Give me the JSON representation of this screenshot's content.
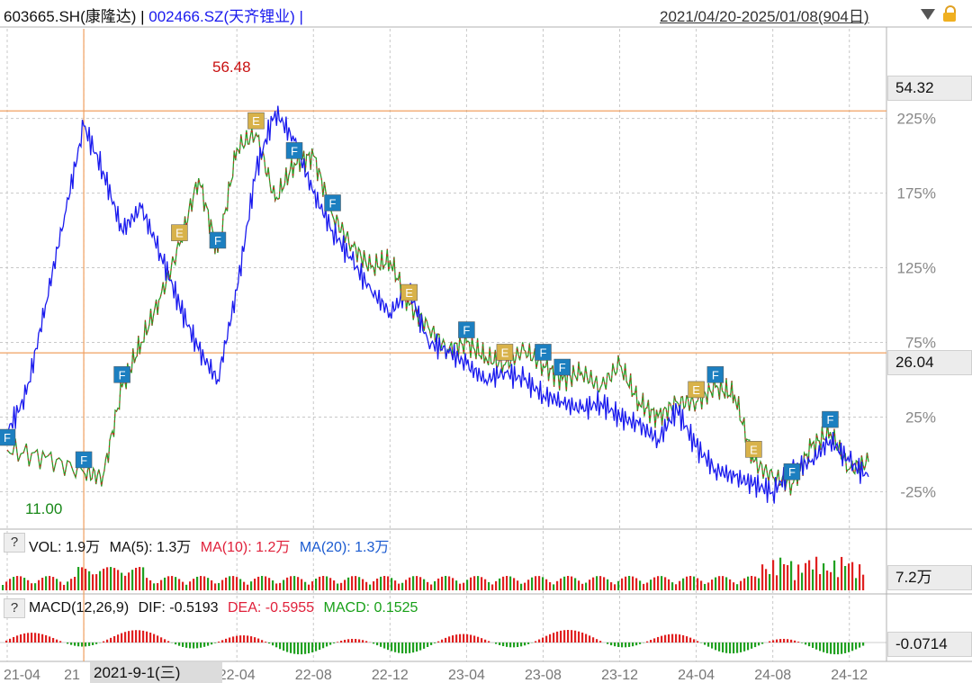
{
  "header": {
    "stock1": "603665.SH(康隆达)",
    "sep1": " | ",
    "stock2": "002466.SZ(天齐锂业)",
    "sep2": " |",
    "range": "2021/04/20-2025/01/08(904日)",
    "colors": {
      "stock1": "#111111",
      "stock2": "#1a1aee",
      "range": "#333333"
    }
  },
  "price_labels": {
    "high": "56.48",
    "low": "11.00",
    "cursor_price": "54.32",
    "ref_price": "26.04",
    "cursor_date": "2021-9-1(三)"
  },
  "volume_panel": {
    "q": "?",
    "vol": "VOL: 1.9万",
    "ma5": "MA(5): 1.3万",
    "ma10": "MA(10): 1.2万",
    "ma20": "MA(20): 1.3万",
    "tag": "7.2万"
  },
  "macd_panel": {
    "q": "?",
    "name": "MACD(12,26,9)",
    "dif": "DIF: -0.5193",
    "dea": "DEA: -0.5955",
    "macd": "MACD: 0.1525",
    "tag": "-0.0714"
  },
  "chart_data": {
    "type": "line",
    "y_ticks": [
      "225%",
      "175%",
      "125%",
      "75%",
      "25%",
      "-25%"
    ],
    "x_ticks": [
      "21-04",
      "21",
      "22-04",
      "22-08",
      "22-12",
      "23-04",
      "23-08",
      "23-12",
      "24-04",
      "24-08",
      "24-12"
    ],
    "series": [
      {
        "name": "603665.SH(康隆达)",
        "color": "#2a9d2a",
        "x": [
          "21-04",
          "21-06",
          "21-08",
          "21-09",
          "21-10",
          "21-11",
          "21-12",
          "22-01",
          "22-02",
          "22-03",
          "22-04",
          "22-05",
          "22-06",
          "22-07",
          "22-08",
          "22-09",
          "22-10",
          "22-11",
          "22-12",
          "23-01",
          "23-02",
          "23-03",
          "23-04",
          "23-05",
          "23-06",
          "23-07",
          "23-08",
          "23-09",
          "23-10",
          "23-11",
          "23-12",
          "24-01",
          "24-02",
          "24-03",
          "24-04",
          "24-05",
          "24-06",
          "24-07",
          "24-08",
          "24-09",
          "24-10",
          "24-11",
          "24-12",
          "25-01"
        ],
        "values": [
          3,
          -2,
          -12,
          -15,
          45,
          75,
          105,
          140,
          185,
          135,
          205,
          215,
          170,
          195,
          200,
          160,
          140,
          125,
          130,
          100,
          85,
          70,
          75,
          65,
          60,
          70,
          60,
          50,
          55,
          45,
          60,
          35,
          25,
          35,
          35,
          45,
          40,
          -5,
          -15,
          -20,
          5,
          15,
          -10,
          -5
        ]
      },
      {
        "name": "002466.SZ(天齐锂业)",
        "color": "#1a1aee",
        "x": [
          "21-04",
          "21-05",
          "21-06",
          "21-07",
          "21-08",
          "21-09",
          "21-10",
          "21-11",
          "21-12",
          "22-01",
          "22-02",
          "22-03",
          "22-04",
          "22-05",
          "22-06",
          "22-07",
          "22-08",
          "22-09",
          "22-10",
          "22-11",
          "22-12",
          "23-01",
          "23-02",
          "23-03",
          "23-04",
          "23-05",
          "23-06",
          "23-07",
          "23-08",
          "23-09",
          "23-10",
          "23-11",
          "23-12",
          "24-01",
          "24-02",
          "24-03",
          "24-04",
          "24-05",
          "24-06",
          "24-07",
          "24-08",
          "24-09",
          "24-10",
          "24-11",
          "24-12",
          "25-01"
        ],
        "values": [
          15,
          40,
          100,
          160,
          220,
          190,
          150,
          165,
          135,
          100,
          70,
          50,
          110,
          190,
          230,
          210,
          175,
          150,
          130,
          110,
          95,
          110,
          75,
          70,
          60,
          50,
          55,
          50,
          40,
          35,
          30,
          35,
          25,
          20,
          10,
          30,
          5,
          -10,
          -15,
          -20,
          -25,
          -10,
          -5,
          10,
          -5,
          -15
        ]
      }
    ],
    "markers": [
      {
        "label": "F",
        "x": "21-04",
        "series": "603665.SH(康隆达)"
      },
      {
        "label": "F",
        "x": "21-08",
        "series": "603665.SH(康隆达)"
      },
      {
        "label": "F",
        "x": "21-10",
        "series": "603665.SH(康隆达)"
      },
      {
        "label": "E",
        "x": "22-01",
        "series": "603665.SH(康隆达)"
      },
      {
        "label": "F",
        "x": "22-03",
        "series": "603665.SH(康隆达)"
      },
      {
        "label": "E",
        "x": "22-05",
        "series": "603665.SH(康隆达)"
      },
      {
        "label": "F",
        "x": "22-07",
        "series": "603665.SH(康隆达)"
      },
      {
        "label": "F",
        "x": "22-09",
        "series": "603665.SH(康隆达)"
      },
      {
        "label": "E",
        "x": "23-01",
        "series": "603665.SH(康隆达)"
      },
      {
        "label": "F",
        "x": "23-04",
        "series": "603665.SH(康隆达)"
      },
      {
        "label": "E",
        "x": "23-06",
        "series": "603665.SH(康隆达)"
      },
      {
        "label": "F",
        "x": "23-08",
        "series": "603665.SH(康隆达)"
      },
      {
        "label": "F",
        "x": "23-09",
        "series": "603665.SH(康隆达)"
      },
      {
        "label": "E",
        "x": "24-04",
        "series": "603665.SH(康隆达)"
      },
      {
        "label": "F",
        "x": "24-05",
        "series": "603665.SH(康隆达)"
      },
      {
        "label": "E",
        "x": "24-07",
        "series": "603665.SH(康隆达)"
      },
      {
        "label": "F",
        "x": "24-09",
        "series": "603665.SH(康隆达)"
      },
      {
        "label": "F",
        "x": "24-11",
        "series": "603665.SH(康隆达)"
      }
    ],
    "reference_lines": [
      {
        "label": "54.32",
        "y": 230
      },
      {
        "label": "26.04",
        "y": 68
      }
    ],
    "ylim": [
      -50,
      285
    ],
    "grid": true
  }
}
